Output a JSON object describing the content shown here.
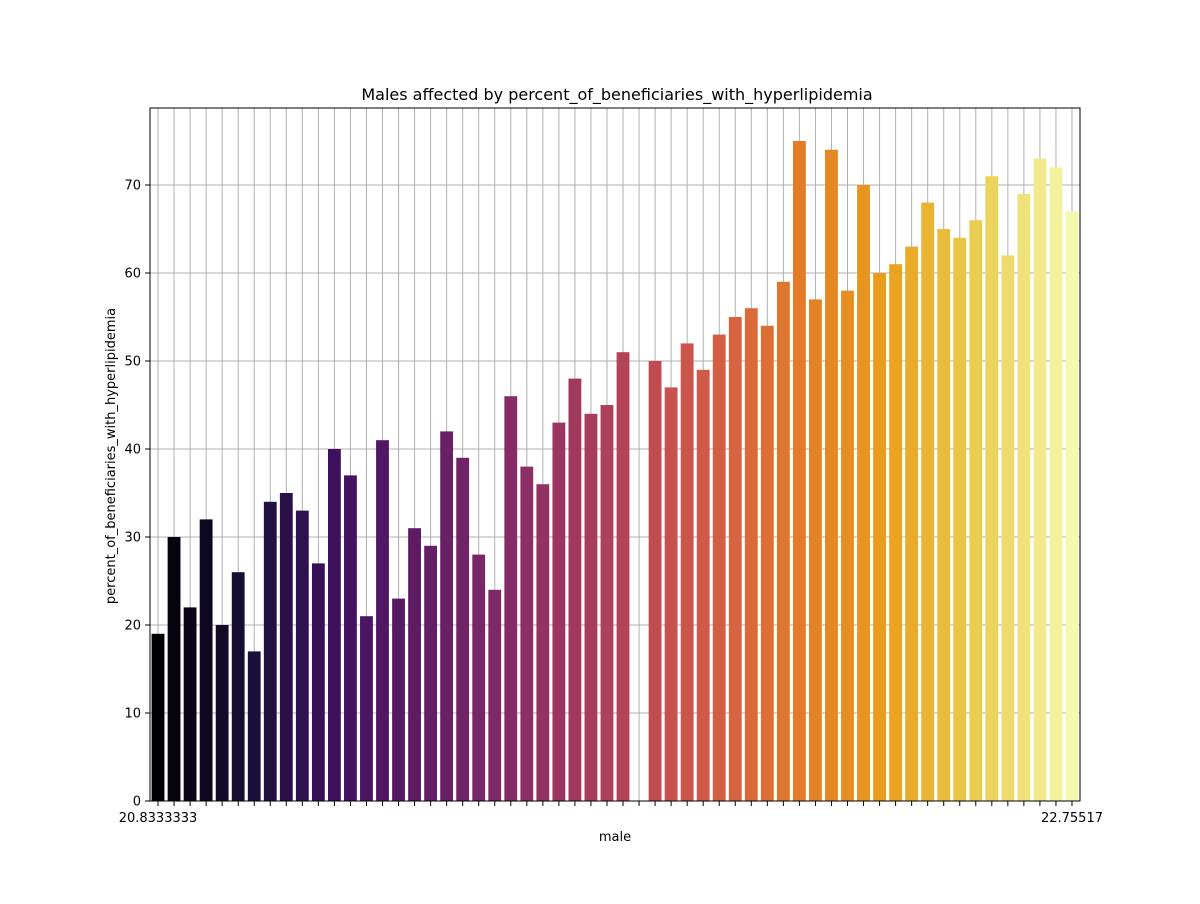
{
  "chart_data": {
    "type": "bar",
    "title": "Males affected by percent_of_beneficiaries_with_hyperlipidemia",
    "xlabel": "male",
    "ylabel": "percent_of_beneficiaries_with_hyperlipidemia",
    "ylim": [
      0,
      78.75
    ],
    "yticks": [
      0,
      10,
      20,
      30,
      40,
      50,
      60,
      70
    ],
    "grid": true,
    "legend": "none",
    "palette": "inferno",
    "first_tick_label": "20.8333333",
    "last_tick_label": "22.75517",
    "values": [
      19,
      30,
      22,
      32,
      20,
      26,
      17,
      34,
      35,
      33,
      27,
      40,
      37,
      21,
      41,
      23,
      31,
      29,
      42,
      39,
      28,
      24,
      46,
      38,
      36,
      43,
      48,
      44,
      45,
      51,
      0,
      50,
      47,
      52,
      49,
      53,
      55,
      56,
      54,
      59,
      75,
      57,
      74,
      58,
      70,
      60,
      61,
      63,
      68,
      65,
      64,
      66,
      71,
      62,
      69,
      73,
      72,
      67
    ]
  }
}
